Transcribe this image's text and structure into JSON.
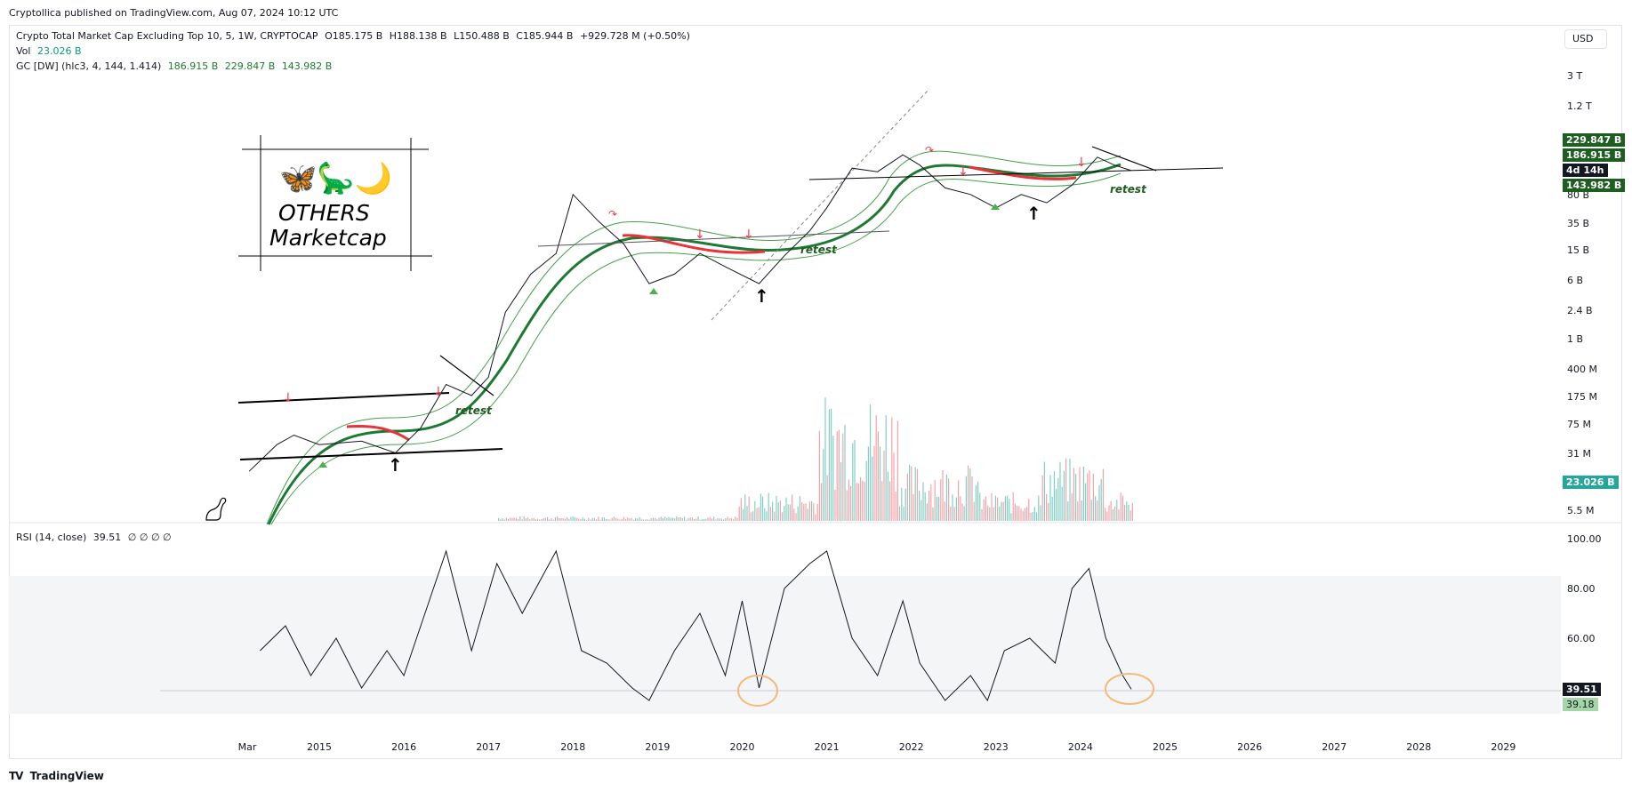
{
  "header": {
    "published": "Cryptollica published on TradingView.com, Aug 07, 2024 10:12 UTC"
  },
  "legend": {
    "main_title": "Crypto Total Market Cap Excluding Top 10, 5, 1W, CRYPTOCAP",
    "open": "O185.175 B",
    "high": "H188.138 B",
    "low": "L150.488 B",
    "close": "C185.944 B",
    "change": "+929.728 M (+0.50%)",
    "vol_label": "Vol",
    "vol_value": "23.026 B",
    "gc_label": "GC [DW] (hlc3, 4, 144, 1.414)",
    "gc_v1": "186.915 B",
    "gc_v2": "229.847 B",
    "gc_v3": "143.982 B",
    "rsi_label": "RSI (14, close)",
    "rsi_value": "39.51",
    "rsi_extra": "∅ ∅ ∅ ∅"
  },
  "currency": "USD",
  "logo_box": {
    "emoji": "🦋🦕🌙",
    "line1": "OTHERS",
    "line2": "Marketcap"
  },
  "annotations": {
    "retest1": "retest",
    "retest2": "retest",
    "retest3": "retest"
  },
  "price_tags": {
    "upper": "229.847 B",
    "mid": "186.915 B",
    "countdown": "4d 14h",
    "lower": "143.982 B",
    "vol": "23.026 B",
    "rsi": "39.51",
    "rsi_ma": "39.18"
  },
  "footer": {
    "logo": "TV",
    "brand": "TradingView"
  },
  "colors": {
    "up": "#089981",
    "down": "#f23645",
    "band_green": "#1e7a33",
    "band_red": "#e8333b",
    "rsi_circle": "#f5b97a",
    "tag_green": "#1e5e20"
  },
  "chart_data": [
    {
      "type": "line",
      "title": "Crypto Total Market Cap Excluding Top 10",
      "scale": "log",
      "y_ticks": [
        "3 T",
        "1.2 T",
        "80 B",
        "35 B",
        "15 B",
        "6 B",
        "2.4 B",
        "1 B",
        "400 M",
        "175 M",
        "75 M",
        "31 M",
        "5.5 M"
      ],
      "x_ticks": [
        "Mar",
        "2015",
        "2016",
        "2017",
        "2018",
        "2019",
        "2020",
        "2021",
        "2022",
        "2023",
        "2024",
        "2025",
        "2026",
        "2027",
        "2028",
        "2029"
      ],
      "series": [
        {
          "values": [
            [
              2014.17,
              0.02
            ],
            [
              2014.5,
              0.045
            ],
            [
              2014.7,
              0.06
            ],
            [
              2015.0,
              0.045
            ],
            [
              2015.5,
              0.05
            ],
            [
              2015.9,
              0.035
            ],
            [
              2016.2,
              0.075
            ],
            [
              2016.5,
              0.28
            ],
            [
              2016.8,
              0.2
            ],
            [
              2017.0,
              0.35
            ],
            [
              2017.2,
              2.5
            ],
            [
              2017.5,
              8
            ],
            [
              2017.8,
              15
            ],
            [
              2018.0,
              90
            ],
            [
              2018.3,
              40
            ],
            [
              2018.6,
              20
            ],
            [
              2018.9,
              6
            ],
            [
              2019.2,
              8
            ],
            [
              2019.5,
              15
            ],
            [
              2019.8,
              10
            ],
            [
              2020.2,
              6
            ],
            [
              2020.5,
              14
            ],
            [
              2020.8,
              30
            ],
            [
              2021.0,
              60
            ],
            [
              2021.3,
              200
            ],
            [
              2021.6,
              180
            ],
            [
              2021.9,
              300
            ],
            [
              2022.1,
              220
            ],
            [
              2022.4,
              110
            ],
            [
              2022.7,
              90
            ],
            [
              2023.0,
              60
            ],
            [
              2023.3,
              90
            ],
            [
              2023.6,
              70
            ],
            [
              2023.9,
              120
            ],
            [
              2024.2,
              280
            ],
            [
              2024.4,
              220
            ],
            [
              2024.6,
              186
            ]
          ]
        }
      ]
    },
    {
      "type": "line",
      "title": "RSI (14, close)",
      "y_ticks": [
        "100.00",
        "80.00",
        "60.00"
      ],
      "ylim": [
        30,
        100
      ],
      "series": [
        {
          "values": [
            [
              2014.3,
              55
            ],
            [
              2014.6,
              65
            ],
            [
              2014.9,
              45
            ],
            [
              2015.2,
              60
            ],
            [
              2015.5,
              40
            ],
            [
              2015.8,
              55
            ],
            [
              2016.0,
              45
            ],
            [
              2016.3,
              75
            ],
            [
              2016.5,
              95
            ],
            [
              2016.8,
              55
            ],
            [
              2017.1,
              90
            ],
            [
              2017.4,
              70
            ],
            [
              2017.8,
              95
            ],
            [
              2018.1,
              55
            ],
            [
              2018.4,
              50
            ],
            [
              2018.7,
              40
            ],
            [
              2018.9,
              35
            ],
            [
              2019.2,
              55
            ],
            [
              2019.5,
              70
            ],
            [
              2019.8,
              45
            ],
            [
              2020.0,
              75
            ],
            [
              2020.2,
              40
            ],
            [
              2020.5,
              80
            ],
            [
              2020.8,
              90
            ],
            [
              2021.0,
              95
            ],
            [
              2021.3,
              60
            ],
            [
              2021.6,
              45
            ],
            [
              2021.9,
              75
            ],
            [
              2022.1,
              50
            ],
            [
              2022.4,
              35
            ],
            [
              2022.7,
              45
            ],
            [
              2022.9,
              35
            ],
            [
              2023.1,
              55
            ],
            [
              2023.4,
              60
            ],
            [
              2023.7,
              50
            ],
            [
              2023.9,
              80
            ],
            [
              2024.1,
              88
            ],
            [
              2024.3,
              60
            ],
            [
              2024.5,
              45
            ],
            [
              2024.6,
              39.51
            ]
          ]
        }
      ]
    }
  ]
}
